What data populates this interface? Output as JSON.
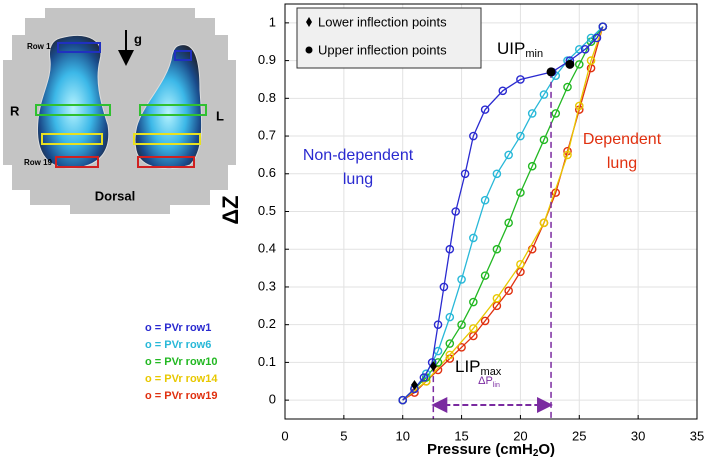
{
  "chart_data": {
    "type": "line",
    "xlabel": {
      "text": "Pressure (cmH",
      "sub": "2",
      "end": "O)"
    },
    "ylabel": "ΔZ",
    "xlim": [
      0,
      35
    ],
    "xticks": [
      0,
      5,
      10,
      15,
      20,
      25,
      30,
      35
    ],
    "ylim": [
      -0.05,
      1.05
    ],
    "yticks": [
      0,
      0.1,
      0.2,
      0.3,
      0.4,
      0.5,
      0.6,
      0.7,
      0.8,
      0.9,
      1
    ],
    "grid": true,
    "legend_corner": "top-left",
    "series": [
      {
        "name": "o = PVr row19",
        "color": "#e0300f",
        "x": [
          10,
          11,
          12,
          13,
          14,
          15,
          16,
          17,
          18,
          19,
          20,
          21,
          22,
          23,
          24,
          25,
          26,
          27
        ],
        "values": [
          0,
          0.02,
          0.05,
          0.08,
          0.11,
          0.14,
          0.17,
          0.21,
          0.25,
          0.29,
          0.34,
          0.4,
          0.47,
          0.55,
          0.66,
          0.77,
          0.88,
          0.99
        ]
      },
      {
        "name": "o = PVr row14",
        "color": "#e8c800",
        "x": [
          10,
          12,
          14,
          16,
          18,
          20,
          22,
          24,
          25,
          26,
          27
        ],
        "values": [
          0,
          0.05,
          0.12,
          0.19,
          0.27,
          0.36,
          0.47,
          0.65,
          0.78,
          0.9,
          0.99
        ]
      },
      {
        "name": "o = PVr row10",
        "color": "#22b822",
        "x": [
          10,
          11,
          12,
          13,
          14,
          15,
          16,
          17,
          18,
          19,
          20,
          21,
          22,
          23,
          24,
          25,
          26,
          27
        ],
        "values": [
          0,
          0.03,
          0.06,
          0.1,
          0.15,
          0.2,
          0.26,
          0.33,
          0.4,
          0.47,
          0.55,
          0.62,
          0.69,
          0.76,
          0.83,
          0.89,
          0.95,
          0.99
        ]
      },
      {
        "name": "o = PVr row6",
        "color": "#28b8d8",
        "x": [
          10,
          11,
          12,
          13,
          14,
          15,
          16,
          17,
          18,
          19,
          20,
          21,
          22,
          23,
          24,
          25,
          26,
          27
        ],
        "values": [
          0,
          0.03,
          0.07,
          0.13,
          0.22,
          0.32,
          0.43,
          0.53,
          0.6,
          0.65,
          0.7,
          0.76,
          0.81,
          0.86,
          0.9,
          0.93,
          0.96,
          0.99
        ]
      },
      {
        "name": "o = PVr row1",
        "color": "#2a2ad0",
        "x": [
          10,
          11,
          11.8,
          12.5,
          13,
          13.5,
          14,
          14.5,
          15.3,
          16,
          17,
          18.5,
          20,
          22.7,
          24.2,
          25.5,
          26.5,
          27
        ],
        "values": [
          0,
          0.03,
          0.06,
          0.1,
          0.2,
          0.3,
          0.4,
          0.5,
          0.6,
          0.7,
          0.77,
          0.82,
          0.85,
          0.87,
          0.9,
          0.93,
          0.96,
          0.99
        ]
      }
    ],
    "lower_inflection_points": {
      "name": "Lower inflection points",
      "x": [
        11,
        12.6
      ],
      "values": [
        0.04,
        0.09
      ]
    },
    "upper_inflection_points": {
      "name": "Upper inflection points",
      "x": [
        22.6,
        24.2
      ],
      "values": [
        0.87,
        0.89
      ]
    },
    "annotations": {
      "uip": {
        "text": "UIP",
        "sub": "min"
      },
      "lip": {
        "text": "LIP",
        "sub": "max"
      },
      "dp": {
        "text": "ΔP",
        "sub": "lin"
      },
      "non_dependent": [
        "Non-dependent",
        "lung"
      ],
      "dependent": [
        "Dependent",
        "lung"
      ]
    }
  },
  "inset": {
    "row1": "Row 1",
    "row19": "Row 19",
    "right": "R",
    "left": "L",
    "bottom": "Dorsal",
    "gravity": "g"
  }
}
